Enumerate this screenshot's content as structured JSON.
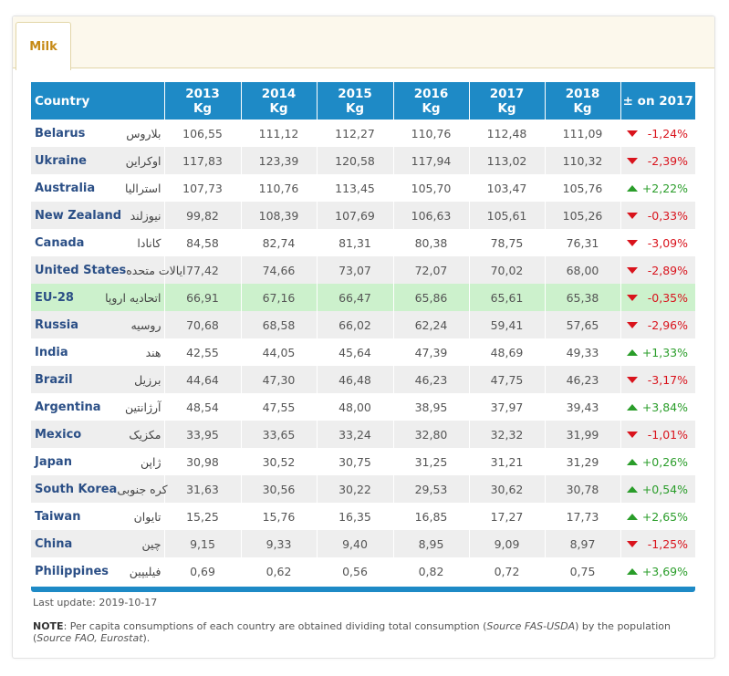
{
  "tab": {
    "label": "Milk"
  },
  "table": {
    "headers": [
      "Country",
      "2013\nKg",
      "2014\nKg",
      "2015\nKg",
      "2016\nKg",
      "2017\nKg",
      "2018\nKg",
      "± on 2017"
    ],
    "rows": [
      {
        "en": "Belarus",
        "fa": "بلاروس",
        "values": [
          "106,55",
          "111,12",
          "112,27",
          "110,76",
          "112,48",
          "111,09"
        ],
        "trend": "down",
        "change": "-1,24%"
      },
      {
        "en": "Ukraine",
        "fa": "اوکراین",
        "values": [
          "117,83",
          "123,39",
          "120,58",
          "117,94",
          "113,02",
          "110,32"
        ],
        "trend": "down",
        "change": "-2,39%"
      },
      {
        "en": "Australia",
        "fa": "استرالیا",
        "values": [
          "107,73",
          "110,76",
          "113,45",
          "105,70",
          "103,47",
          "105,76"
        ],
        "trend": "up",
        "change": "+2,22%"
      },
      {
        "en": "New Zealand",
        "fa": "نیوزلند",
        "values": [
          "99,82",
          "108,39",
          "107,69",
          "106,63",
          "105,61",
          "105,26"
        ],
        "trend": "down",
        "change": "-0,33%"
      },
      {
        "en": "Canada",
        "fa": "کانادا",
        "values": [
          "84,58",
          "82,74",
          "81,31",
          "80,38",
          "78,75",
          "76,31"
        ],
        "trend": "down",
        "change": "-3,09%"
      },
      {
        "en": "United States",
        "fa": "ایالات متحده",
        "values": [
          "77,42",
          "74,66",
          "73,07",
          "72,07",
          "70,02",
          "68,00"
        ],
        "trend": "down",
        "change": "-2,89%"
      },
      {
        "en": "EU-28",
        "fa": "اتحادیه اروپا",
        "values": [
          "66,91",
          "67,16",
          "66,47",
          "65,86",
          "65,61",
          "65,38"
        ],
        "trend": "down",
        "change": "-0,35%",
        "highlight": true
      },
      {
        "en": "Russia",
        "fa": "روسیه",
        "values": [
          "70,68",
          "68,58",
          "66,02",
          "62,24",
          "59,41",
          "57,65"
        ],
        "trend": "down",
        "change": "-2,96%"
      },
      {
        "en": "India",
        "fa": "هند",
        "values": [
          "42,55",
          "44,05",
          "45,64",
          "47,39",
          "48,69",
          "49,33"
        ],
        "trend": "up",
        "change": "+1,33%"
      },
      {
        "en": "Brazil",
        "fa": "برزیل",
        "values": [
          "44,64",
          "47,30",
          "46,48",
          "46,23",
          "47,75",
          "46,23"
        ],
        "trend": "down",
        "change": "-3,17%"
      },
      {
        "en": "Argentina",
        "fa": "آرژانتین",
        "values": [
          "48,54",
          "47,55",
          "48,00",
          "38,95",
          "37,97",
          "39,43"
        ],
        "trend": "up",
        "change": "+3,84%"
      },
      {
        "en": "Mexico",
        "fa": "مکزیک",
        "values": [
          "33,95",
          "33,65",
          "33,24",
          "32,80",
          "32,32",
          "31,99"
        ],
        "trend": "down",
        "change": "-1,01%"
      },
      {
        "en": "Japan",
        "fa": "ژاپن",
        "values": [
          "30,98",
          "30,52",
          "30,75",
          "31,25",
          "31,21",
          "31,29"
        ],
        "trend": "up",
        "change": "+0,26%"
      },
      {
        "en": "South Korea",
        "fa": "کره جنوبی",
        "values": [
          "31,63",
          "30,56",
          "30,22",
          "29,53",
          "30,62",
          "30,78"
        ],
        "trend": "up",
        "change": "+0,54%"
      },
      {
        "en": "Taiwan",
        "fa": "تایوان",
        "values": [
          "15,25",
          "15,76",
          "16,35",
          "16,85",
          "17,27",
          "17,73"
        ],
        "trend": "up",
        "change": "+2,65%"
      },
      {
        "en": "China",
        "fa": "چین",
        "values": [
          "9,15",
          "9,33",
          "9,40",
          "8,95",
          "9,09",
          "8,97"
        ],
        "trend": "down",
        "change": "-1,25%"
      },
      {
        "en": "Philippines",
        "fa": "فیلیپین",
        "values": [
          "0,69",
          "0,62",
          "0,56",
          "0,82",
          "0,72",
          "0,75"
        ],
        "trend": "up",
        "change": "+3,69%"
      }
    ]
  },
  "footer": {
    "last_update": "Last update: 2019-10-17",
    "note_label": "NOTE",
    "note_text_1": ": Per capita consumptions of each country are obtained dividing total consumption (",
    "note_src_1": "Source FAS-USDA",
    "note_text_2": ") by the population (",
    "note_src_2": "Source FAO, Eurostat",
    "note_text_3": ")."
  },
  "colors": {
    "header_blue": "#1e8ac6",
    "highlight_green": "#ccf1cc",
    "down_red": "#d9131c",
    "up_green": "#2a9d2a",
    "tab_gold": "#c68a16"
  }
}
